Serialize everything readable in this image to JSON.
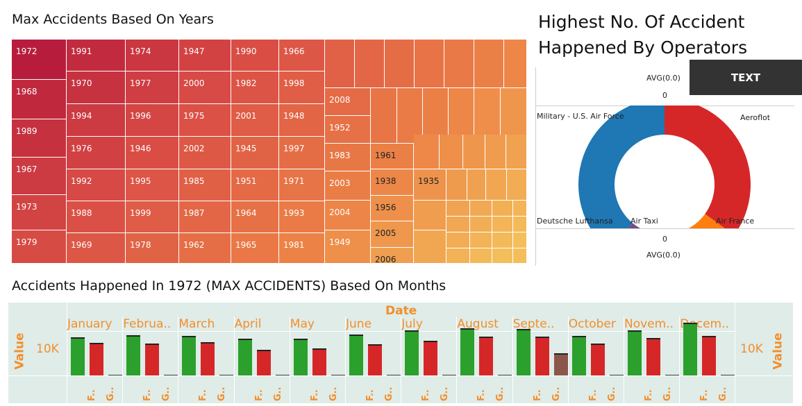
{
  "treemap": {
    "title": "Max Accidents Based On Years",
    "labels": [
      "1972",
      "1968",
      "1989",
      "1967",
      "1973",
      "1979",
      "1991",
      "1970",
      "1994",
      "1976",
      "1992",
      "1988",
      "1969",
      "1974",
      "1977",
      "1996",
      "1946",
      "1995",
      "1999",
      "1978",
      "1947",
      "2000",
      "1975",
      "2002",
      "1985",
      "1987",
      "1962",
      "1990",
      "1982",
      "2001",
      "1945",
      "1951",
      "1964",
      "1965",
      "1966",
      "1998",
      "1948",
      "1997",
      "1971",
      "1993",
      "1981",
      "2008",
      "1952",
      "1983",
      "2003",
      "2004",
      "1949",
      "1961",
      "1938",
      "1956",
      "2005",
      "2006",
      "1935"
    ]
  },
  "donut": {
    "title_line1": "Highest No. Of Accident",
    "title_line2": "Happened By Operators",
    "avg_top": "AVG(0.0)",
    "zero_top": "0",
    "zero_bottom": "0",
    "avg_bottom": "AVG(0.0)",
    "text_button": "TEXT",
    "slices": [
      {
        "label": "Military - U.S. Air Force",
        "value": 39,
        "color": "#1f77b4"
      },
      {
        "label": "Aeroflot",
        "value": 35,
        "color": "#d62728"
      },
      {
        "label": "Air France",
        "value": 12,
        "color": "#ff7f0e"
      },
      {
        "label": "Air Taxi",
        "value": 5,
        "color": "#59a14f"
      },
      {
        "label": "Deutsche Lufthansa",
        "value": 9,
        "color": "#7b4a7e"
      }
    ]
  },
  "months_chart": {
    "title": "Accidents Happened In 1972 (MAX ACCIDENTS) Based On Months",
    "header": "Date",
    "value_label": "Value",
    "tick_label": "10K",
    "sub_labels": [
      "F..",
      "G.."
    ],
    "colors": {
      "green": "#2ca02c",
      "red": "#d62728",
      "brown": "#8c564b"
    },
    "months": [
      {
        "label": "January",
        "values": [
          11500,
          9800,
          300
        ]
      },
      {
        "label": "Februa..",
        "values": [
          12100,
          9500,
          300
        ]
      },
      {
        "label": "March",
        "values": [
          11800,
          10100,
          300
        ]
      },
      {
        "label": "April",
        "values": [
          11000,
          7700,
          300
        ]
      },
      {
        "label": "May",
        "values": [
          11100,
          8200,
          300
        ]
      },
      {
        "label": "June",
        "values": [
          12200,
          9300,
          300
        ]
      },
      {
        "label": "July",
        "values": [
          13500,
          10500,
          300
        ]
      },
      {
        "label": "August",
        "values": [
          14100,
          11600,
          300
        ]
      },
      {
        "label": "Septe..",
        "values": [
          14000,
          11700,
          6700
        ]
      },
      {
        "label": "October",
        "values": [
          11800,
          9500,
          300
        ]
      },
      {
        "label": "Novem..",
        "values": [
          13600,
          11200,
          300
        ]
      },
      {
        "label": "Decem..",
        "values": [
          15800,
          11900,
          300
        ]
      }
    ]
  }
}
